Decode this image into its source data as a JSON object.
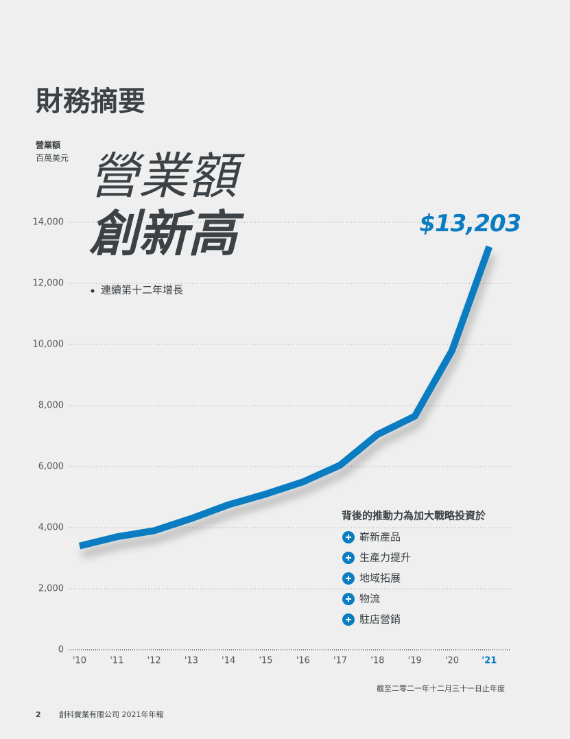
{
  "page": {
    "title": "財務摘要",
    "page_number": "2",
    "footer": "創科實業有限公司 2021年年報"
  },
  "chart_data": {
    "type": "line",
    "headline": [
      "營業額",
      "創新高"
    ],
    "annotation": "連續第十二年增長",
    "y_label": "營業額",
    "y_unit": "百萬美元",
    "drivers_title": "背後的推動力為加大戰略投資於",
    "drivers": [
      "嶄新產品",
      "生產力提升",
      "地域拓展",
      "物流",
      "駐店營銷"
    ],
    "footnote": "截至二零二一年十二月三十一日止年度",
    "categories": [
      "'10",
      "'11",
      "'12",
      "'13",
      "'14",
      "'15",
      "'16",
      "'17",
      "'18",
      "'19",
      "'20",
      "'21"
    ],
    "series": [
      {
        "name": "營業額",
        "color": "#0a7cc1",
        "values": [
          3400,
          3700,
          3900,
          4300,
          4750,
          5100,
          5500,
          6050,
          7050,
          7650,
          9800,
          13203
        ],
        "value_labels": [
          null,
          null,
          null,
          null,
          null,
          null,
          null,
          null,
          null,
          null,
          null,
          "$13,203"
        ]
      }
    ],
    "ylim": [
      0,
      14000
    ],
    "yticks": [
      0,
      {
        "value": 2000,
        "label": "2,000"
      },
      {
        "value": 4000,
        "label": "4,000"
      },
      {
        "value": 6000,
        "label": "6,000"
      },
      {
        "value": 8000,
        "label": "8,000"
      },
      {
        "value": 10000,
        "label": "10,000"
      },
      {
        "value": 12000,
        "label": "12,000"
      },
      {
        "value": 14000,
        "label": "14,000"
      }
    ],
    "grid": true
  }
}
